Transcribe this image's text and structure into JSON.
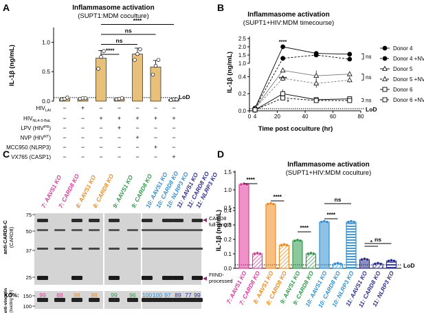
{
  "panel_labels": {
    "a": "A",
    "b": "B",
    "c": "C",
    "d": "D"
  },
  "colors": {
    "pink": "#e0389a",
    "orange": "#f08a1c",
    "green": "#2e9b48",
    "blue": "#2f8fd4",
    "navy": "#2c2f8f",
    "gray": "#808080",
    "panelA_bar": "#e8c07a"
  },
  "chart_data": [
    {
      "id": "A",
      "type": "bar",
      "title": "Inflammasome activation",
      "subtitle": "(SUPT1:MDM coculture)",
      "ylabel": "IL-1β (ng/mL)",
      "ylim": [
        0,
        1.25
      ],
      "yticks": [
        "0.0",
        "0.5",
        "1.0"
      ],
      "lod_label": "LoD",
      "lod_value": 0.06,
      "values": [
        0.04,
        0.04,
        0.73,
        0.04,
        0.8,
        0.58,
        0.03
      ],
      "errors": [
        0.02,
        0.02,
        0.13,
        0.01,
        0.1,
        0.11,
        0.01
      ],
      "points": [
        [
          0.03,
          0.04,
          0.06
        ],
        [
          0.04,
          0.05,
          0.05
        ],
        [
          0.55,
          0.75,
          0.85
        ],
        [
          0.03,
          0.04,
          0.05
        ],
        [
          0.7,
          0.8,
          0.88
        ],
        [
          0.45,
          0.6,
          0.7
        ],
        [
          0.02,
          0.03,
          0.03
        ]
      ],
      "conditions": [
        {
          "label": "HIV",
          "sub": "LAI",
          "sup": "",
          "marks": [
            "−",
            "+",
            "−",
            "−",
            "−",
            "−",
            "−"
          ]
        },
        {
          "label": "HIV",
          "sub": "NL4-3-BaL",
          "sup": "",
          "marks": [
            "−",
            "−",
            "+",
            "+",
            "+",
            "+",
            "+"
          ]
        },
        {
          "label": "LPV (HIV",
          "sub": "",
          "sup": "PR",
          "after": ")",
          "marks": [
            "−",
            "−",
            "−",
            "+",
            "−",
            "−",
            "−"
          ]
        },
        {
          "label": "NVP (HIV",
          "sub": "",
          "sup": "RT",
          "after": ")",
          "marks": [
            "−",
            "−",
            "−",
            "−",
            "+",
            "−",
            "−"
          ]
        },
        {
          "label": "MCC950 (NLRP3)",
          "sub": "",
          "sup": "",
          "marks": [
            "−",
            "−",
            "−",
            "−",
            "−",
            "+",
            "−"
          ]
        },
        {
          "label": "VX765 (CASP1)",
          "sub": "",
          "sup": "",
          "marks": [
            "−",
            "−",
            "−",
            "−",
            "−",
            "−",
            "+"
          ]
        }
      ],
      "brackets": [
        {
          "from": 2,
          "to": 3,
          "label": "****"
        },
        {
          "from": 2,
          "to": 4,
          "label": "ns"
        },
        {
          "from": 2,
          "to": 5,
          "label": "ns"
        },
        {
          "from": 2,
          "to": 6,
          "label": "****"
        }
      ]
    },
    {
      "id": "B",
      "type": "line",
      "title": "Inflammasome activation",
      "subtitle": "(SUPT1+HIV:MDM timecourse)",
      "xlabel": "Time post coculture (hr)",
      "ylabel": "IL-1β (ng/mL)",
      "xlim": [
        0,
        80
      ],
      "xticks": [
        "0",
        "4",
        "20",
        "40",
        "60",
        "80"
      ],
      "yticks": [
        "0.0",
        "0.2",
        "0.4",
        "1.0",
        "1.5",
        "2.0",
        "2.5"
      ],
      "lod_label": "LoD",
      "x": [
        4,
        24,
        48,
        72
      ],
      "series": [
        {
          "name": "Donor 4",
          "marker": "circle",
          "fill": true,
          "dash": false,
          "values": [
            0.03,
            2.0,
            1.6,
            1.55
          ],
          "errors": [
            0,
            0.05,
            0.05,
            0.05
          ]
        },
        {
          "name": "Donor 4 +NVP",
          "marker": "circle",
          "fill": true,
          "dash": true,
          "values": [
            0.03,
            1.3,
            1.5,
            1.25
          ],
          "errors": [
            0,
            0.05,
            0.05,
            0.05
          ]
        },
        {
          "name": "Donor 5",
          "marker": "triangle",
          "fill": false,
          "dash": false,
          "values": [
            0.03,
            0.57,
            0.41,
            0.43
          ],
          "errors": [
            0,
            0.03,
            0.06,
            0.03
          ]
        },
        {
          "name": "Donor 5 +NVP",
          "marker": "triangle",
          "fill": false,
          "dash": true,
          "values": [
            0.03,
            0.38,
            0.32,
            0.36
          ],
          "errors": [
            0,
            0.03,
            0.05,
            0.03
          ]
        },
        {
          "name": "Donor 6",
          "marker": "square",
          "fill": false,
          "dash": false,
          "values": [
            0.01,
            0.2,
            0.13,
            0.14
          ],
          "errors": [
            0,
            0.05,
            0.02,
            0.02
          ]
        },
        {
          "name": "Donor 6 +NVP",
          "marker": "square",
          "fill": false,
          "dash": true,
          "values": [
            0.01,
            0.15,
            0.12,
            0.12
          ],
          "errors": [
            0,
            0.02,
            0.02,
            0.02
          ]
        }
      ],
      "annotations": [
        "****",
        "****",
        "*",
        "ns",
        "ns",
        "ns"
      ]
    },
    {
      "id": "C",
      "type": "table",
      "lanes": [
        {
          "text": "7: AAVS1 KO",
          "color": "pink"
        },
        {
          "text": "7: CARD8 KO",
          "color": "pink"
        },
        {
          "text": "8: AAVS1 KO",
          "color": "orange"
        },
        {
          "text": "8: CARD8 KO",
          "color": "orange"
        },
        {
          "text": "9: AAVS1 KO",
          "color": "green"
        },
        {
          "text": "9: CARD8 KO",
          "color": "green"
        },
        {
          "text": "10: AAVS1 KO",
          "color": "blue"
        },
        {
          "text": "10: CARD8 KO",
          "color": "blue"
        },
        {
          "text": "10: NLRP3 KO",
          "color": "blue"
        },
        {
          "text": "11: AAVS1 KO",
          "color": "navy"
        },
        {
          "text": "11: CARD8 KO",
          "color": "navy"
        },
        {
          "text": "11: NLRP3 KO",
          "color": "navy"
        }
      ],
      "ko_label": "KO%:",
      "ko_values": [
        "99",
        "88",
        "98",
        "98",
        "99",
        "96",
        "100",
        "100",
        "97",
        "89",
        "77",
        "99"
      ],
      "mw_markers": [
        "75",
        "50",
        "37",
        "25"
      ],
      "loading_mw": [
        "150",
        "100"
      ],
      "ylabel_top": "anti-CARD8-C",
      "ylabel_top_sub": "(CARD8)",
      "ylabel_bottom": "anti-vinculin",
      "ylabel_bottom_sub": "(loading ctrl)",
      "band_labels": [
        {
          "line1": "CARD8",
          "line2": "full-length"
        },
        {
          "line1": "FIIND-",
          "line2": "processed"
        }
      ]
    },
    {
      "id": "D",
      "type": "bar",
      "title": "Inflammasome activation",
      "subtitle": "(SUPT1+HIV:MDM coculture)",
      "ylabel": "IL-1β (ng/mL)",
      "yticks": [
        "0.0",
        "0.1",
        "0.2",
        "0.3",
        "0.4",
        "0.5",
        "1.0",
        "1.5"
      ],
      "lod_label": "LoD",
      "categories": [
        "7: AAVS1 KO",
        "7: CARD8 KO",
        "8: AAVS1 KO",
        "8: CARD8 KO",
        "9: AAVS1 KO",
        "9: CARD8 KO",
        "10: AAVS1 KO",
        "10: CARD8 KO",
        "10: NLRP3 KO",
        "11: AAVS1 KO",
        "11: CARD8 KO",
        "11: NLRP3 KO"
      ],
      "values": [
        1.15,
        0.1,
        0.6,
        0.16,
        0.19,
        0.1,
        0.32,
        0.03,
        0.32,
        0.06,
        0.03,
        0.05
      ],
      "series_colors": [
        "pink",
        "pink",
        "orange",
        "orange",
        "green",
        "green",
        "blue",
        "blue",
        "blue",
        "navy",
        "navy",
        "navy"
      ],
      "patterns": [
        "solid",
        "hatch",
        "solid",
        "hatch",
        "solid",
        "hatch",
        "solid",
        "hatch",
        "stripe",
        "solid",
        "hatch",
        "stripe"
      ],
      "brackets": [
        {
          "from": 0,
          "to": 1,
          "label": "****"
        },
        {
          "from": 2,
          "to": 3,
          "label": "****"
        },
        {
          "from": 4,
          "to": 5,
          "label": "****"
        },
        {
          "from": 6,
          "to": 7,
          "label": "****"
        },
        {
          "from": 6,
          "to": 8,
          "label": "ns"
        },
        {
          "from": 9,
          "to": 10,
          "label": "*"
        },
        {
          "from": 9,
          "to": 11,
          "label": "ns"
        }
      ]
    }
  ]
}
